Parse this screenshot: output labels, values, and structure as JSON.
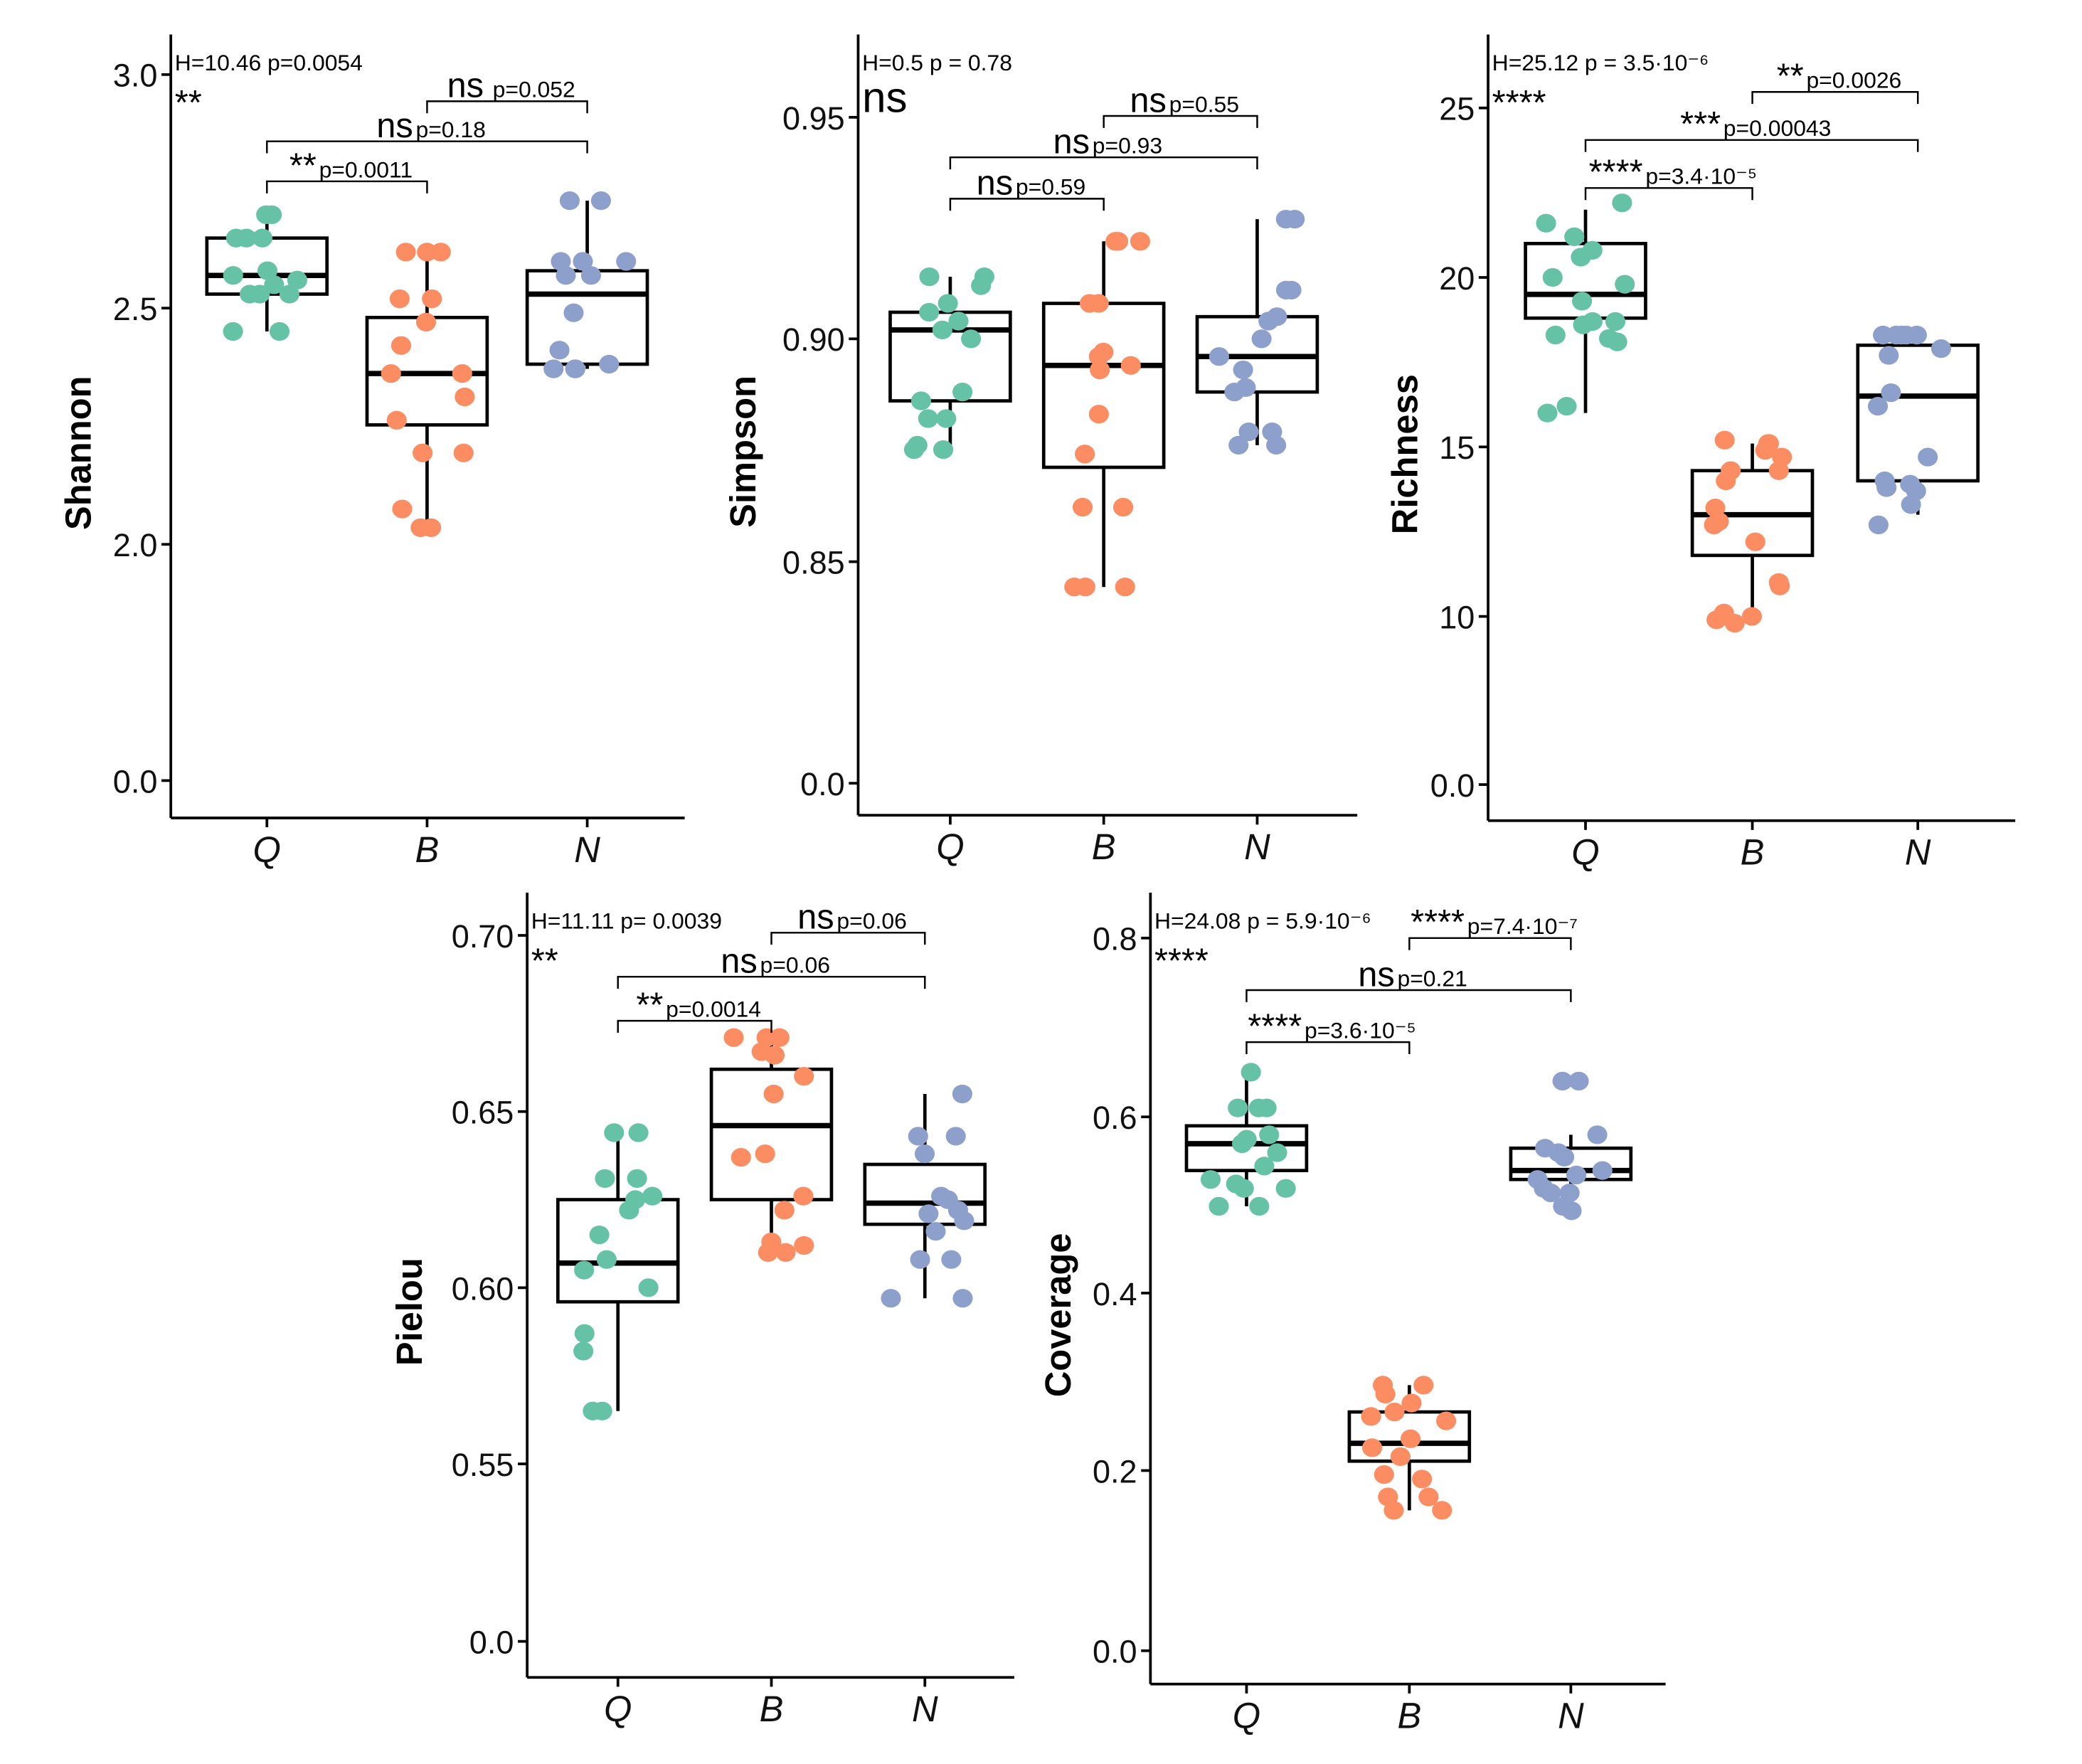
{
  "colors": {
    "Q": "#66c2a5",
    "B": "#fc8d62",
    "N": "#8da0cb"
  },
  "chart_data": [
    {
      "type": "box",
      "ylabel": "Shannon",
      "categories": [
        "Q",
        "B",
        "N"
      ],
      "yticks": [
        "3.0",
        "2.5",
        "2.0",
        "0.0"
      ],
      "test_label": "H=10.46  p=0.0054",
      "test_sig": "**",
      "boxes": [
        {
          "group": "Q",
          "min": 2.45,
          "q1": 2.53,
          "median": 2.57,
          "q3": 2.65,
          "max": 2.7,
          "points": [
            2.7,
            2.7,
            2.65,
            2.65,
            2.65,
            2.58,
            2.57,
            2.56,
            2.55,
            2.53,
            2.53,
            2.53,
            2.45,
            2.45
          ]
        },
        {
          "group": "B",
          "min": 2.03,
          "q1": 2.25,
          "median": 2.36,
          "q3": 2.48,
          "max": 2.62,
          "points": [
            2.62,
            2.62,
            2.62,
            2.52,
            2.52,
            2.47,
            2.42,
            2.36,
            2.36,
            2.31,
            2.26,
            2.19,
            2.19,
            2.07,
            2.03,
            2.03
          ]
        },
        {
          "group": "N",
          "min": 2.37,
          "q1": 2.38,
          "median": 2.53,
          "q3": 2.58,
          "max": 2.73,
          "points": [
            2.73,
            2.73,
            2.6,
            2.6,
            2.6,
            2.57,
            2.57,
            2.49,
            2.41,
            2.38,
            2.37,
            2.37,
            2.37
          ]
        }
      ],
      "comparisons": [
        {
          "from": "Q",
          "to": "B",
          "sig": "**",
          "p": "p=0.0011"
        },
        {
          "from": "Q",
          "to": "N",
          "sig": "ns",
          "p": "p=0.18"
        },
        {
          "from": "B",
          "to": "N",
          "sig": "ns",
          "p": " p=0.052"
        }
      ]
    },
    {
      "type": "box",
      "ylabel": "Simpson",
      "categories": [
        "Q",
        "B",
        "N"
      ],
      "yticks": [
        "0.95",
        "0.90",
        "0.85",
        "0.0"
      ],
      "test_label": "H=0.5  p = 0.78",
      "test_sig": "ns",
      "boxes": [
        {
          "group": "Q",
          "min": 0.874,
          "q1": 0.886,
          "median": 0.902,
          "q3": 0.906,
          "max": 0.914,
          "points": [
            0.914,
            0.914,
            0.912,
            0.908,
            0.906,
            0.904,
            0.902,
            0.9,
            0.888,
            0.886,
            0.882,
            0.882,
            0.876,
            0.875,
            0.875
          ]
        },
        {
          "group": "B",
          "min": 0.844,
          "q1": 0.871,
          "median": 0.894,
          "q3": 0.908,
          "max": 0.922,
          "points": [
            0.922,
            0.922,
            0.922,
            0.908,
            0.908,
            0.897,
            0.896,
            0.894,
            0.893,
            0.883,
            0.874,
            0.862,
            0.862,
            0.844,
            0.844,
            0.844
          ]
        },
        {
          "group": "N",
          "min": 0.876,
          "q1": 0.888,
          "median": 0.896,
          "q3": 0.905,
          "max": 0.927,
          "points": [
            0.927,
            0.927,
            0.911,
            0.911,
            0.905,
            0.904,
            0.9,
            0.896,
            0.893,
            0.889,
            0.888,
            0.879,
            0.879,
            0.876,
            0.876
          ]
        }
      ],
      "comparisons": [
        {
          "from": "Q",
          "to": "B",
          "sig": "ns",
          "p": "p=0.59"
        },
        {
          "from": "Q",
          "to": "N",
          "sig": "ns",
          "p": "p=0.93"
        },
        {
          "from": "B",
          "to": "N",
          "sig": "ns",
          "p": "p=0.55"
        }
      ]
    },
    {
      "type": "box",
      "ylabel": "Richness",
      "categories": [
        "Q",
        "B",
        "N"
      ],
      "yticks": [
        "25",
        "20",
        "15",
        "10",
        "0.0"
      ],
      "test_label": "H=25.12  p = 3.5·10⁻⁶",
      "test_sig": "****",
      "boxes": [
        {
          "group": "Q",
          "min": 16.0,
          "q1": 18.8,
          "median": 19.5,
          "q3": 21.0,
          "max": 22.0,
          "points": [
            22.2,
            21.6,
            21.2,
            20.8,
            20.6,
            20.0,
            19.8,
            19.3,
            18.7,
            18.7,
            18.6,
            18.3,
            18.2,
            18.1,
            16.2,
            16.0
          ]
        },
        {
          "group": "B",
          "min": 10.0,
          "q1": 11.8,
          "median": 13.0,
          "q3": 14.3,
          "max": 15.1,
          "points": [
            15.2,
            15.1,
            15.1,
            14.9,
            14.7,
            14.3,
            14.3,
            14.0,
            13.2,
            12.8,
            12.7,
            12.2,
            11.0,
            10.9,
            10.1,
            10.0,
            9.9,
            9.8
          ]
        },
        {
          "group": "N",
          "min": 13.0,
          "q1": 14.0,
          "median": 16.5,
          "q3": 18.0,
          "max": 18.4,
          "points": [
            18.3,
            18.3,
            18.3,
            18.3,
            18.3,
            17.9,
            17.7,
            16.6,
            16.2,
            14.7,
            14.0,
            13.9,
            13.8,
            13.7,
            13.3,
            12.7
          ]
        }
      ],
      "comparisons": [
        {
          "from": "Q",
          "to": "B",
          "sig": "****",
          "p": "p=3.4·10⁻⁵"
        },
        {
          "from": "Q",
          "to": "N",
          "sig": "***",
          "p": "p=0.00043"
        },
        {
          "from": "B",
          "to": "N",
          "sig": "**",
          "p": "p=0.0026"
        }
      ]
    },
    {
      "type": "box",
      "ylabel": "Pielou",
      "categories": [
        "Q",
        "B",
        "N"
      ],
      "yticks": [
        "0.70",
        "0.65",
        "0.60",
        "0.55",
        "0.0"
      ],
      "test_label": "H=11.11    p= 0.0039",
      "test_sig": "**",
      "boxes": [
        {
          "group": "Q",
          "min": 0.565,
          "q1": 0.596,
          "median": 0.607,
          "q3": 0.625,
          "max": 0.643,
          "points": [
            0.644,
            0.644,
            0.631,
            0.631,
            0.626,
            0.625,
            0.622,
            0.615,
            0.608,
            0.605,
            0.6,
            0.587,
            0.582,
            0.565,
            0.565
          ]
        },
        {
          "group": "B",
          "min": 0.611,
          "q1": 0.625,
          "median": 0.646,
          "q3": 0.662,
          "max": 0.67,
          "points": [
            0.671,
            0.671,
            0.671,
            0.667,
            0.666,
            0.66,
            0.655,
            0.638,
            0.637,
            0.626,
            0.622,
            0.613,
            0.612,
            0.61,
            0.61
          ]
        },
        {
          "group": "N",
          "min": 0.597,
          "q1": 0.618,
          "median": 0.624,
          "q3": 0.635,
          "max": 0.655,
          "points": [
            0.655,
            0.643,
            0.643,
            0.638,
            0.626,
            0.625,
            0.622,
            0.621,
            0.619,
            0.616,
            0.608,
            0.608,
            0.597,
            0.597
          ]
        }
      ],
      "comparisons": [
        {
          "from": "Q",
          "to": "B",
          "sig": "**",
          "p": "p=0.0014"
        },
        {
          "from": "Q",
          "to": "N",
          "sig": "ns",
          "p": "p=0.06"
        },
        {
          "from": "B",
          "to": "N",
          "sig": "ns",
          "p": "p=0.06"
        }
      ]
    },
    {
      "type": "box",
      "ylabel": "Coverage",
      "categories": [
        "Q",
        "B",
        "N"
      ],
      "yticks": [
        "0.8",
        "0.6",
        "0.4",
        "0.2",
        "0.0"
      ],
      "test_label": "H=24.08  p = 5.9·10⁻⁶",
      "test_sig": "****",
      "boxes": [
        {
          "group": "Q",
          "min": 0.5,
          "q1": 0.54,
          "median": 0.57,
          "q3": 0.59,
          "max": 0.65,
          "points": [
            0.65,
            0.61,
            0.61,
            0.61,
            0.58,
            0.575,
            0.57,
            0.56,
            0.545,
            0.53,
            0.525,
            0.52,
            0.52,
            0.5,
            0.5
          ]
        },
        {
          "group": "B",
          "min": 0.16,
          "q1": 0.215,
          "median": 0.235,
          "q3": 0.27,
          "max": 0.3,
          "points": [
            0.3,
            0.3,
            0.29,
            0.28,
            0.27,
            0.265,
            0.26,
            0.24,
            0.23,
            0.22,
            0.2,
            0.195,
            0.175,
            0.175,
            0.16,
            0.16
          ]
        },
        {
          "group": "N",
          "min": 0.495,
          "q1": 0.53,
          "median": 0.54,
          "q3": 0.565,
          "max": 0.58,
          "points": [
            0.64,
            0.64,
            0.58,
            0.565,
            0.56,
            0.555,
            0.54,
            0.535,
            0.53,
            0.52,
            0.515,
            0.515,
            0.5,
            0.495
          ]
        }
      ],
      "comparisons": [
        {
          "from": "Q",
          "to": "B",
          "sig": "****",
          "p": "p=3.6·10⁻⁵"
        },
        {
          "from": "Q",
          "to": "N",
          "sig": "ns",
          "p": "p=0.21"
        },
        {
          "from": "B",
          "to": "N",
          "sig": "****",
          "p": "p=7.4·10⁻⁷"
        }
      ]
    }
  ]
}
